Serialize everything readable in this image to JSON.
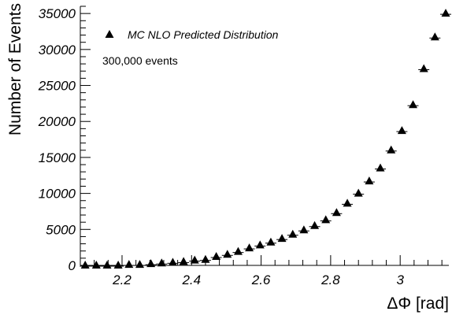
{
  "chart_data": {
    "type": "scatter",
    "xlabel": "ΔΦ [rad]",
    "ylabel": "Number of Events",
    "xlim": [
      2.08,
      3.14
    ],
    "ylim": [
      0,
      36000
    ],
    "xticks": [
      2.2,
      2.4,
      2.6,
      2.8,
      3.0
    ],
    "xtick_labels": [
      "2.2",
      "2.4",
      "2.6",
      "2.8",
      "3"
    ],
    "yticks": [
      0,
      5000,
      10000,
      15000,
      20000,
      25000,
      30000,
      35000
    ],
    "ytick_labels": [
      "0",
      "5000",
      "10000",
      "15000",
      "20000",
      "25000",
      "30000",
      "35000"
    ],
    "grid": false,
    "legend_position": "top-left",
    "annotation": "300,000 events",
    "series": [
      {
        "name": "MC NLO Predicted Distribution",
        "marker": "triangle",
        "color": "#000000",
        "x": [
          2.094,
          2.126,
          2.157,
          2.189,
          2.22,
          2.251,
          2.283,
          2.314,
          2.346,
          2.377,
          2.409,
          2.44,
          2.471,
          2.503,
          2.534,
          2.566,
          2.597,
          2.628,
          2.66,
          2.691,
          2.723,
          2.754,
          2.786,
          2.817,
          2.848,
          2.88,
          2.911,
          2.943,
          2.974,
          3.005,
          3.037,
          3.068,
          3.1,
          3.131
        ],
        "y": [
          0,
          0,
          0,
          0,
          100,
          100,
          200,
          300,
          400,
          500,
          700,
          800,
          1200,
          1500,
          1900,
          2400,
          2800,
          3200,
          3700,
          4300,
          4900,
          5500,
          6300,
          7300,
          8600,
          10000,
          11700,
          13500,
          16000,
          18700,
          22300,
          27300,
          31700,
          35000
        ]
      }
    ]
  }
}
